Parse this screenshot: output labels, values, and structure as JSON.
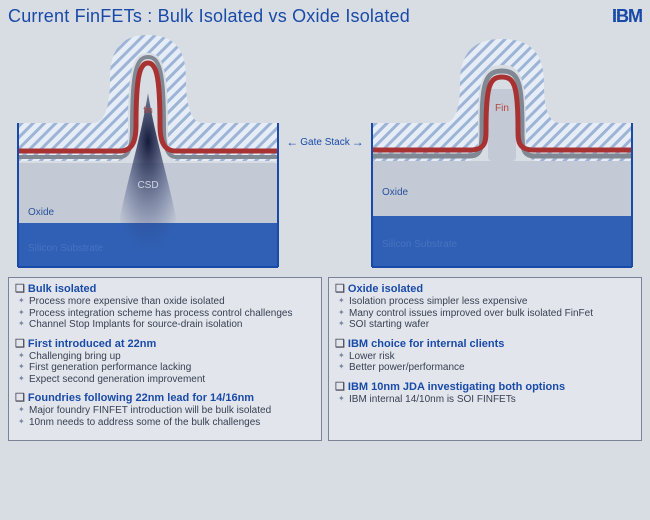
{
  "title": "Current FinFETs :  Bulk Isolated vs Oxide Isolated",
  "logo_text": "IBM",
  "gate_stack_label": "Gate Stack",
  "colors": {
    "title": "#1a4aa8",
    "slide_bg": "#d8dde4",
    "box_border": "#7a8496",
    "box_bg": "#e2e6ec",
    "hatch_fg": "#9db4d6",
    "hatch_bg": "#e6edf6",
    "oxide_layer": "#c3cad6",
    "silicon": "#2f60b5",
    "red_line": "#a83232",
    "grey_line": "#808894",
    "csd_dark": "#151b3a",
    "fin_text": "#b8443a",
    "oxide_text": "#2a529a",
    "sub_text": "#4a72c0"
  },
  "left_diagram": {
    "fin_label": "fin",
    "csd_label": "CSD",
    "oxide_label": "Oxide",
    "substrate_label": "Silicon Substrate"
  },
  "right_diagram": {
    "fin_label": "Fin",
    "oxide_label": "Oxide",
    "substrate_label": "Silicon Substrate"
  },
  "left_box": [
    {
      "heading": "Bulk isolated",
      "items": [
        "Process more expensive than oxide isolated",
        "Process integration scheme has process control challenges",
        "Channel Stop Implants for source-drain isolation"
      ]
    },
    {
      "heading": "First introduced at 22nm",
      "items": [
        "Challenging bring up",
        "First generation performance lacking",
        "Expect second generation improvement"
      ]
    },
    {
      "heading": "Foundries following 22nm lead for 14/16nm",
      "items": [
        "Major foundry FINFET introduction will be bulk isolated",
        "10nm needs to address some of the bulk challenges"
      ]
    }
  ],
  "right_box": [
    {
      "heading": "Oxide isolated",
      "items": [
        "Isolation process simpler less expensive",
        "Many control issues improved over bulk isolated FinFet",
        "SOI starting wafer"
      ]
    },
    {
      "heading": "IBM choice for internal clients",
      "items": [
        "Lower risk",
        "Better power/performance"
      ]
    },
    {
      "heading": "IBM 10nm JDA investigating both options",
      "items": [
        "IBM internal 14/10nm is SOI FINFETs"
      ]
    }
  ]
}
